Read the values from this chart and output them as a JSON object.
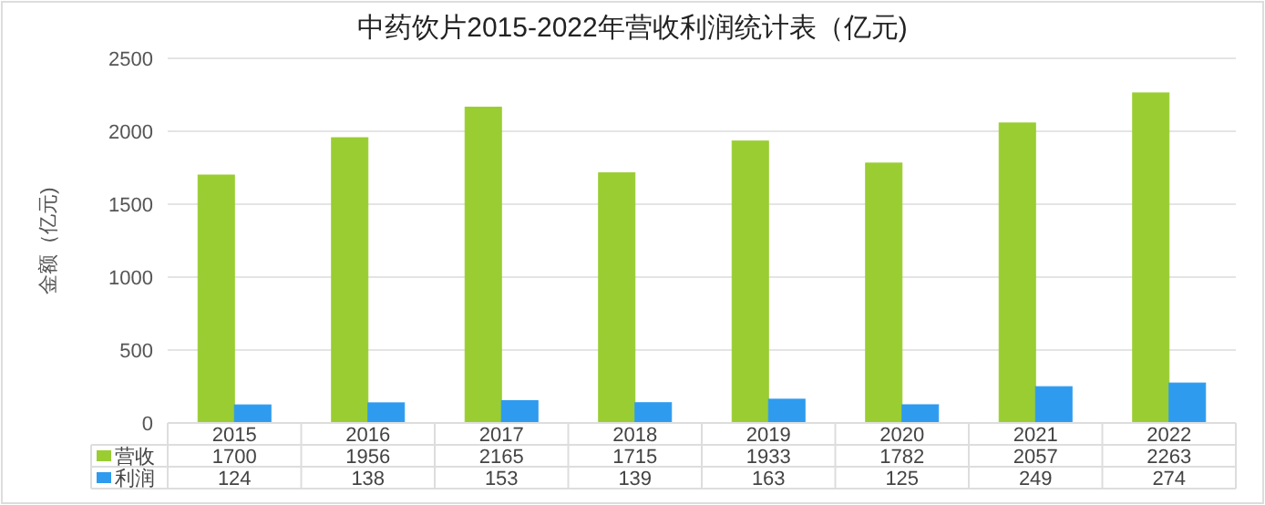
{
  "chart_data": {
    "type": "bar",
    "title": "中药饮片2015-2022年营收利润统计表（亿元)",
    "ylabel": "金额（亿元)",
    "categories": [
      "2015",
      "2016",
      "2017",
      "2018",
      "2019",
      "2020",
      "2021",
      "2022"
    ],
    "series": [
      {
        "name": "营收",
        "color": "#9acd32",
        "values": [
          1700,
          1956,
          2165,
          1715,
          1933,
          1782,
          2057,
          2263
        ]
      },
      {
        "name": "利润",
        "color": "#2e9bef",
        "values": [
          124,
          138,
          153,
          139,
          163,
          125,
          249,
          274
        ]
      }
    ],
    "ylim": [
      0,
      2500
    ],
    "yticks": [
      0,
      500,
      1000,
      1500,
      2000,
      2500
    ],
    "grid": "y",
    "data_labels": true,
    "legend": "bottom"
  }
}
